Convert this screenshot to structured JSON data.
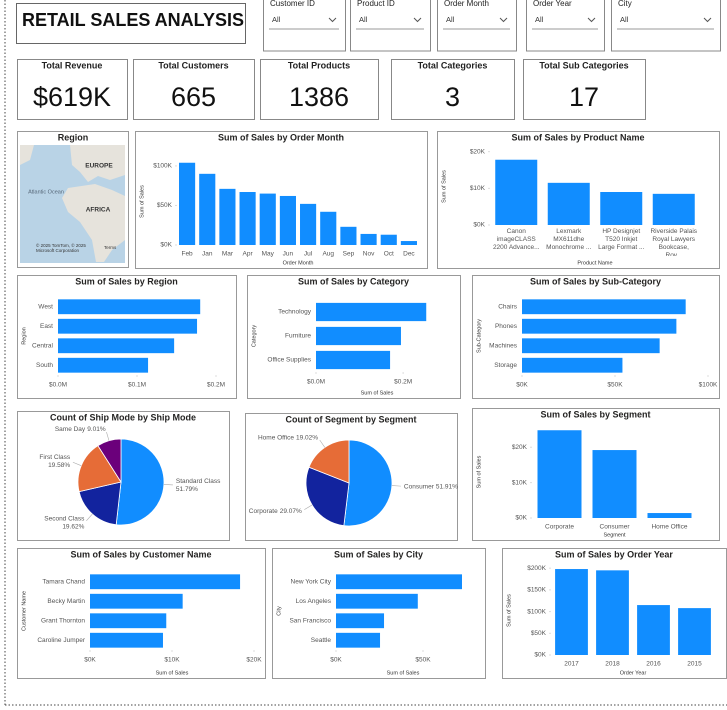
{
  "header": {
    "title": "RETAIL SALES ANALYSIS"
  },
  "slicers": [
    {
      "label": "Customer ID",
      "value": "All"
    },
    {
      "label": "Product ID",
      "value": "All"
    },
    {
      "label": "Order Month",
      "value": "All"
    },
    {
      "label": "Order Year",
      "value": "All"
    },
    {
      "label": "City",
      "value": "All"
    }
  ],
  "kpis": [
    {
      "label": "Total Revenue",
      "value": "$619K"
    },
    {
      "label": "Total Customers",
      "value": 665
    },
    {
      "label": "Total Products",
      "value": 1386
    },
    {
      "label": "Total Categories",
      "value": 3
    },
    {
      "label": "Total Sub Categories",
      "value": 17
    }
  ],
  "map": {
    "title": "Region",
    "labels": [
      "EUROPE",
      "Atlantic Ocean",
      "AFRICA"
    ],
    "attribution": "© 2025 TomTom, © 2025 Microsoft Corporation",
    "terms": "Terms"
  },
  "chart_data": [
    {
      "type": "bar",
      "title": "Sum of Sales by Order Month",
      "x_label": "Order Month",
      "y_label": "Sum of Sales",
      "color": "#118DFF",
      "categories": [
        "Feb",
        "Jan",
        "Mar",
        "Apr",
        "May",
        "Jun",
        "Jul",
        "Aug",
        "Sep",
        "Nov",
        "Oct",
        "Dec"
      ],
      "values": [
        104000,
        90000,
        71000,
        67000,
        65000,
        62000,
        52000,
        42000,
        23000,
        14000,
        13000,
        5000
      ],
      "ylim": [
        0,
        110000
      ],
      "yticks": [
        {
          "value": 0,
          "label": "$0K"
        },
        {
          "value": 50000,
          "label": "$50K"
        },
        {
          "value": 100000,
          "label": "$100K"
        }
      ]
    },
    {
      "type": "bar",
      "title": "Sum of Sales by Product Name",
      "x_label": "Product Name",
      "y_label": "Sum of Sales",
      "color": "#118DFF",
      "categories": [
        "Canon imageCLASS 2200 Advance...",
        "Lexmark MX611dhe Monochrome ...",
        "HP Designjet T520 Inkjet Large Format ...",
        "Riverside Palais Royal Lawyers Bookcase, Roy..."
      ],
      "values": [
        17800,
        11500,
        9000,
        8500
      ],
      "ylim": [
        0,
        21000
      ],
      "yticks": [
        {
          "value": 0,
          "label": "$0K"
        },
        {
          "value": 10000,
          "label": "$10K"
        },
        {
          "value": 20000,
          "label": "$20K"
        }
      ]
    },
    {
      "type": "hbar",
      "title": "Sum of Sales by Region",
      "y_label": "Region",
      "color": "#118DFF",
      "categories": [
        "West",
        "East",
        "Central",
        "South"
      ],
      "values": [
        180000,
        176000,
        147000,
        114000
      ],
      "xlim": [
        0,
        200000
      ],
      "xticks": [
        {
          "value": 0,
          "label": "$0.0M"
        },
        {
          "value": 100000,
          "label": "$0.1M"
        },
        {
          "value": 200000,
          "label": "$0.2M"
        }
      ]
    },
    {
      "type": "hbar",
      "title": "Sum of Sales by Category",
      "x_label": "Sum of Sales",
      "y_label": "Category",
      "color": "#118DFF",
      "categories": [
        "Technology",
        "Furniture",
        "Office Supplies"
      ],
      "values": [
        253000,
        195000,
        170000
      ],
      "xlim": [
        0,
        280000
      ],
      "xticks": [
        {
          "value": 0,
          "label": "$0.0M"
        },
        {
          "value": 200000,
          "label": "$0.2M"
        }
      ]
    },
    {
      "type": "hbar",
      "title": "Sum of Sales by Sub-Category",
      "y_label": "Sub-Category",
      "color": "#118DFF",
      "categories": [
        "Chairs",
        "Phones",
        "Machines",
        "Storage"
      ],
      "values": [
        88000,
        83000,
        74000,
        54000
      ],
      "xlim": [
        0,
        100000
      ],
      "xticks": [
        {
          "value": 0,
          "label": "$0K"
        },
        {
          "value": 50000,
          "label": "$50K"
        },
        {
          "value": 100000,
          "label": "$100K"
        }
      ]
    },
    {
      "type": "pie",
      "title": "Count of Ship Mode by Ship Mode",
      "categories": [
        "Standard Class",
        "Second Class",
        "First Class",
        "Same Day"
      ],
      "values": [
        51.79,
        19.62,
        19.58,
        9.01
      ],
      "value_labels": [
        "51.79%",
        "19.62%",
        "19.58%",
        "9.01%"
      ],
      "colors": [
        "#118DFF",
        "#12239E",
        "#E66C37",
        "#6B007B"
      ]
    },
    {
      "type": "pie",
      "title": "Count of Segment by Segment",
      "categories": [
        "Consumer",
        "Corporate",
        "Home Office"
      ],
      "values": [
        51.91,
        29.07,
        19.02
      ],
      "value_labels": [
        "51.91%",
        "29.07%",
        "19.02%"
      ],
      "colors": [
        "#118DFF",
        "#12239E",
        "#E66C37"
      ]
    },
    {
      "type": "bar",
      "title": "Sum of Sales by Segment",
      "x_label": "Segment",
      "y_label": "Sum of Sales",
      "color": "#118DFF",
      "categories": [
        "Corporate",
        "Consumer",
        "Home Office"
      ],
      "values": [
        24800,
        19200,
        1400
      ],
      "ylim": [
        0,
        26000
      ],
      "yticks": [
        {
          "value": 0,
          "label": "$0K"
        },
        {
          "value": 10000,
          "label": "$10K"
        },
        {
          "value": 20000,
          "label": "$20K"
        }
      ]
    },
    {
      "type": "hbar",
      "title": "Sum of Sales by Customer Name",
      "x_label": "Sum of Sales",
      "y_label": "Customer Name",
      "color": "#118DFF",
      "categories": [
        "Tamara Chand",
        "Becky Martin",
        "Grant Thornton",
        "Caroline Jumper"
      ],
      "values": [
        18300,
        11300,
        9300,
        8900
      ],
      "xlim": [
        0,
        20000
      ],
      "xticks": [
        {
          "value": 0,
          "label": "$0K"
        },
        {
          "value": 10000,
          "label": "$10K"
        },
        {
          "value": 20000,
          "label": "$20K"
        }
      ]
    },
    {
      "type": "hbar",
      "title": "Sum of Sales by City",
      "x_label": "Sum of Sales",
      "y_label": "City",
      "color": "#118DFF",
      "categories": [
        "New York City",
        "Los Angeles",
        "San Francisco",
        "Seattle"
      ],
      "values": [
        72400,
        47000,
        27600,
        25300
      ],
      "xlim": [
        0,
        77000
      ],
      "xticks": [
        {
          "value": 0,
          "label": "$0K"
        },
        {
          "value": 50000,
          "label": "$50K"
        }
      ]
    },
    {
      "type": "bar",
      "title": "Sum of Sales by Order Year",
      "x_label": "Order Year",
      "y_label": "Sum of Sales",
      "color": "#118DFF",
      "categories": [
        "2017",
        "2018",
        "2016",
        "2015"
      ],
      "values": [
        198000,
        195000,
        115000,
        108000
      ],
      "ylim": [
        0,
        205000
      ],
      "yticks": [
        {
          "value": 0,
          "label": "$0K"
        },
        {
          "value": 50000,
          "label": "$50K"
        },
        {
          "value": 100000,
          "label": "$100K"
        },
        {
          "value": 150000,
          "label": "$150K"
        },
        {
          "value": 200000,
          "label": "$200K"
        }
      ]
    }
  ]
}
